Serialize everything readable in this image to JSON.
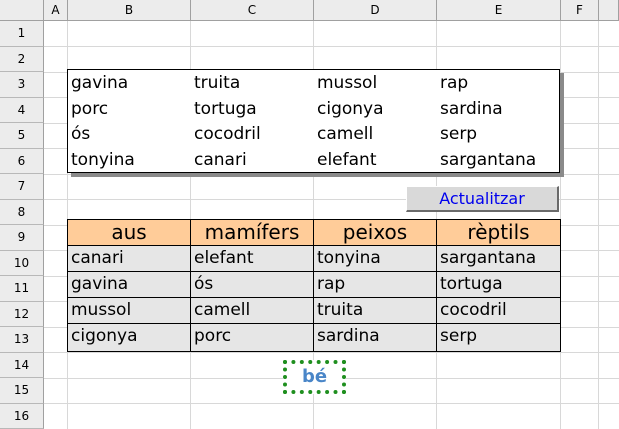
{
  "columns": [
    "A",
    "B",
    "C",
    "D",
    "E",
    "F"
  ],
  "rows": [
    "1",
    "2",
    "3",
    "4",
    "5",
    "6",
    "7",
    "8",
    "9",
    "10",
    "11",
    "12",
    "13",
    "14",
    "15",
    "16"
  ],
  "word_box": {
    "rows": [
      [
        "gavina",
        "truita",
        "mussol",
        "rap"
      ],
      [
        "porc",
        "tortuga",
        "cigonya",
        "sardina"
      ],
      [
        "ós",
        "cocodril",
        "camell",
        "serp"
      ],
      [
        "tonyina",
        "canari",
        "elefant",
        "sargantana"
      ]
    ]
  },
  "update_button": {
    "label": "Actualitzar"
  },
  "table": {
    "headers": [
      "aus",
      "mamífers",
      "peixos",
      "rèptils"
    ],
    "rows": [
      [
        "canari",
        "elefant",
        "tonyina",
        "sargantana"
      ],
      [
        "gavina",
        "ós",
        "rap",
        "tortuga"
      ],
      [
        "mussol",
        "camell",
        "truita",
        "cocodril"
      ],
      [
        "cigonya",
        "porc",
        "sardina",
        "serp"
      ]
    ]
  },
  "result": {
    "label": "bé"
  },
  "colors": {
    "header_fill": "#ffcc99",
    "body_fill": "#e6e6e6",
    "button_text": "#0000ee",
    "result_border": "#1f8f1f",
    "result_text": "#4a86c8"
  }
}
